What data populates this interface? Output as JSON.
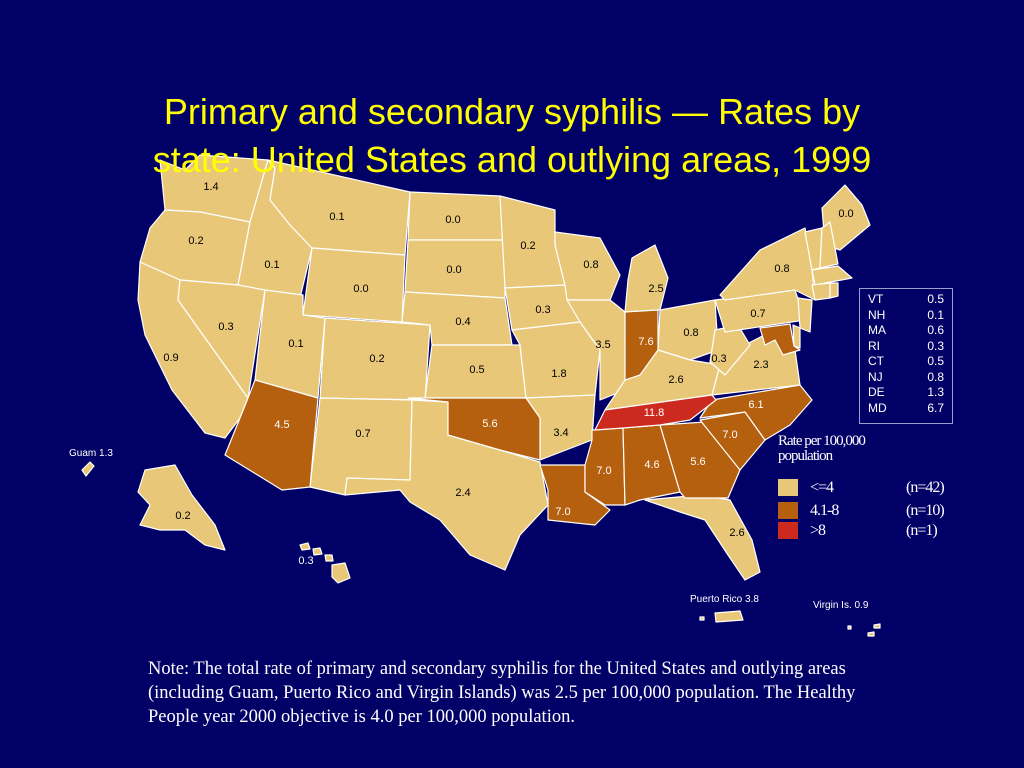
{
  "title": {
    "line1": "Primary and secondary syphilis  —  Rates by",
    "line2": "state: United States and outlying areas, 1999"
  },
  "colors": {
    "background": "#000066",
    "title": "#ffff00",
    "low": "#e8c878",
    "mid": "#b5600f",
    "high": "#cc2a1e"
  },
  "states": {
    "WA": "1.4",
    "OR": "0.2",
    "CA": "0.9",
    "ID": "0.1",
    "NV": "0.3",
    "MT": "0.1",
    "WY": "0.0",
    "UT": "0.1",
    "AZ": "4.5",
    "CO": "0.2",
    "NM": "0.7",
    "ND": "0.0",
    "SD": "0.0",
    "NE": "0.4",
    "KS": "0.5",
    "OK": "5.6",
    "TX": "2.4",
    "MN": "0.2",
    "IA": "0.3",
    "MO": "1.8",
    "AR": "3.4",
    "LA": "7.0",
    "WI": "0.8",
    "IL": "3.5",
    "MI": "2.5",
    "IN": "7.6",
    "OH": "0.8",
    "KY": "2.6",
    "TN": "11.8",
    "MS": "7.0",
    "AL": "4.6",
    "GA": "5.6",
    "FL": "2.6",
    "SC": "7.0",
    "NC": "6.1",
    "VA": "2.3",
    "WV": "0.3",
    "PA": "0.7",
    "NY": "0.8",
    "ME": "0.0",
    "AK": "0.2",
    "HI": "0.3"
  },
  "outlying": {
    "guam": "Guam 1.3",
    "puerto_rico": "Puerto Rico 3.8",
    "virgin_islands": "Virgin Is. 0.9"
  },
  "northeast_table": [
    {
      "state": "VT",
      "rate": "0.5"
    },
    {
      "state": "NH",
      "rate": "0.1"
    },
    {
      "state": "MA",
      "rate": "0.6"
    },
    {
      "state": "RI",
      "rate": "0.3"
    },
    {
      "state": "CT",
      "rate": "0.5"
    },
    {
      "state": "NJ",
      "rate": "0.8"
    },
    {
      "state": "DE",
      "rate": "1.3"
    },
    {
      "state": "MD",
      "rate": "6.7"
    }
  ],
  "legend": {
    "title_line1": "Rate per 100,000",
    "title_line2": "population",
    "items": [
      {
        "label": "<=4",
        "count": "(n=42)",
        "color": "#e8c878"
      },
      {
        "label": "4.1-8",
        "count": "(n=10)",
        "color": "#b5600f"
      },
      {
        "label": ">8",
        "count": "(n=1)",
        "color": "#cc2a1e"
      }
    ]
  },
  "note": "Note:  The total rate of primary and secondary syphilis for the United States and outlying areas (including Guam, Puerto Rico and Virgin Islands) was 2.5 per 100,000 population. The Healthy People year 2000 objective is 4.0 per 100,000 population."
}
